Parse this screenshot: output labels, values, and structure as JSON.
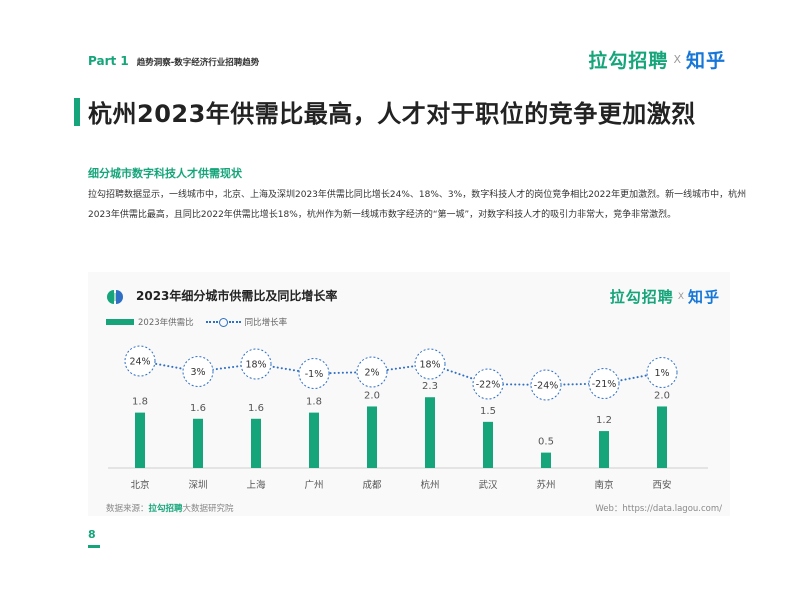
{
  "header": {
    "part": "Part 1",
    "section": "趋势洞察-数字经济行业招聘趋势",
    "logo_lagou": "拉勾招聘",
    "logo_x": "X",
    "logo_zhihu": "知乎"
  },
  "title": "杭州2023年供需比最高，人才对于职位的竞争更加激烈",
  "subtitle": "细分城市数字科技人才供需现状",
  "description": "拉勾招聘数据显示，一线城市中，北京、上海及深圳2023年供需比同比增长24%、18%、3%，数字科技人才的岗位竞争相比2022年更加激烈。新一线城市中，杭州2023年供需比最高，且同比2022年供需比增长18%，杭州作为新一线城市数字经济的“第一城”，对数字科技人才的吸引力非常大，竞争非常激烈。",
  "colors": {
    "accent": "#16a57a",
    "line": "#2f6fc4",
    "zhihu": "#1677d8"
  },
  "chart_data": {
    "type": "bar",
    "title": "2023年细分城市供需比及同比增长率",
    "categories": [
      "北京",
      "深圳",
      "上海",
      "广州",
      "成都",
      "杭州",
      "武汉",
      "苏州",
      "南京",
      "西安"
    ],
    "series": [
      {
        "name": "2023年供需比",
        "type": "bar",
        "values": [
          1.8,
          1.6,
          1.6,
          1.8,
          2.0,
          2.3,
          1.5,
          0.5,
          1.2,
          2.0
        ],
        "labels": [
          "1.8",
          "1.6",
          "1.6",
          "1.8",
          "2.0",
          "2.3",
          "1.5",
          "0.5",
          "1.2",
          "2.0"
        ]
      },
      {
        "name": "同比增长率",
        "type": "line",
        "values": [
          24,
          3,
          18,
          -1,
          2,
          18,
          -22,
          -24,
          -21,
          1
        ],
        "labels": [
          "24%",
          "3%",
          "18%",
          "-1%",
          "2%",
          "18%",
          "-22%",
          "-24%",
          "-21%",
          "1%"
        ]
      }
    ],
    "bar_ylim": [
      0,
      2.6
    ],
    "line_ylim": [
      -30,
      30
    ],
    "grid": false,
    "legend": "top-left"
  },
  "card_logo": {
    "lagou": "拉勾招聘",
    "x": "X",
    "zhihu": "知乎"
  },
  "source": {
    "prefix": "数据来源：",
    "brand": "拉勾招聘",
    "suffix": "大数据研究院"
  },
  "web": "Web：https://data.lagou.com/",
  "page_number": "8"
}
